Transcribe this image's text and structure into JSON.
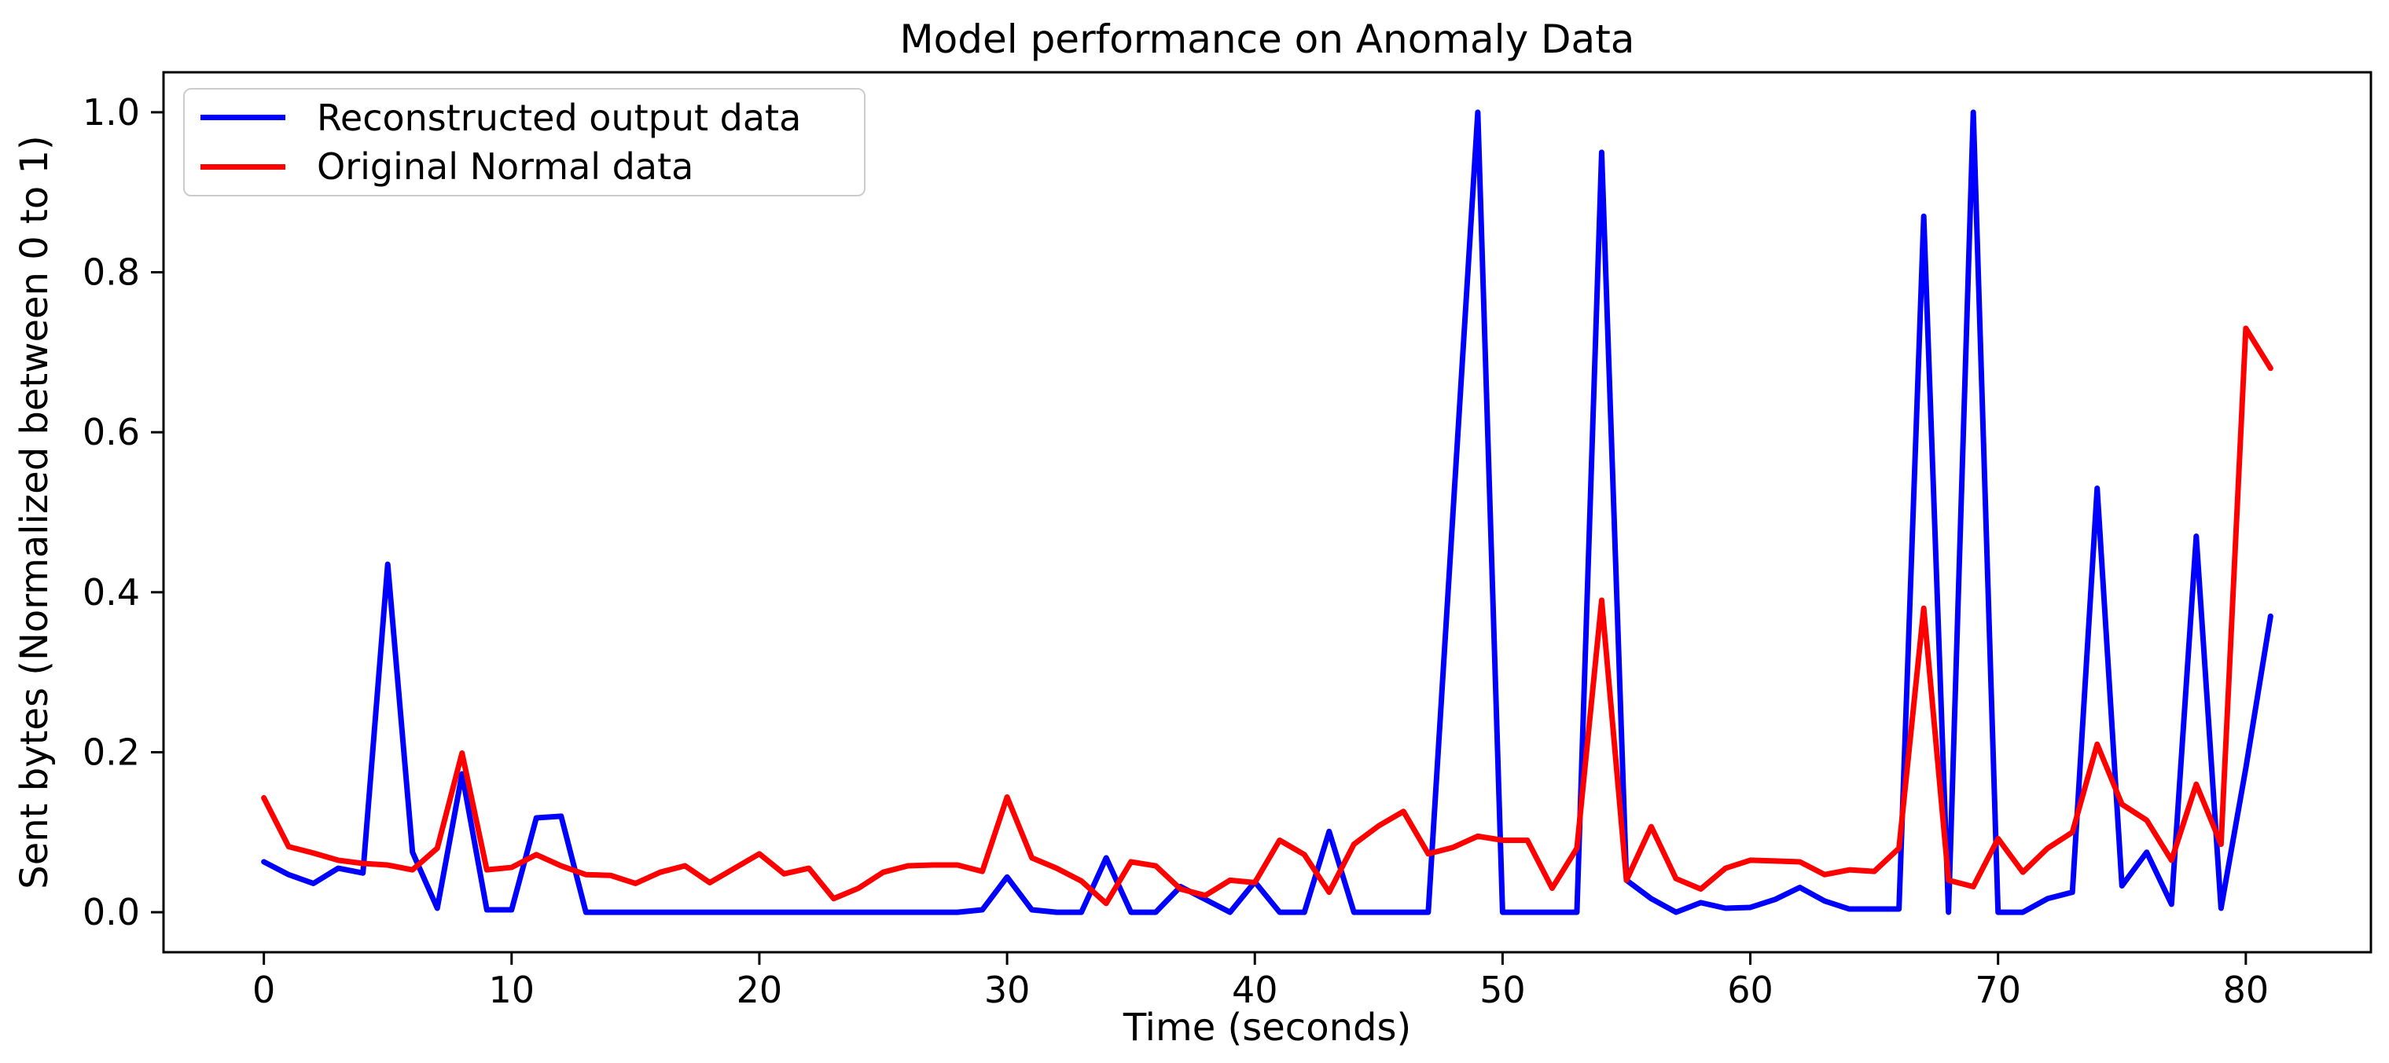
{
  "chart_data": {
    "type": "line",
    "title": "Model performance on Anomaly Data",
    "xlabel": "Time (seconds)",
    "ylabel": "Sent bytes (Normalized between 0 to 1)",
    "grid": false,
    "legend_position": "upper left",
    "background_color": "#ffffff",
    "spine_color": "#000000",
    "xlim": [
      -4.05,
      85.05
    ],
    "ylim": [
      -0.05,
      1.05
    ],
    "xticks": [
      0,
      10,
      20,
      30,
      40,
      50,
      60,
      70,
      80
    ],
    "ytick_labels": [
      "0.0",
      "0.2",
      "0.4",
      "0.6",
      "0.8",
      "1.0"
    ],
    "x": [
      0,
      1,
      2,
      3,
      4,
      5,
      6,
      7,
      8,
      9,
      10,
      11,
      12,
      13,
      14,
      15,
      16,
      17,
      18,
      19,
      20,
      21,
      22,
      23,
      24,
      25,
      26,
      27,
      28,
      29,
      30,
      31,
      32,
      33,
      34,
      35,
      36,
      37,
      38,
      39,
      40,
      41,
      42,
      43,
      44,
      45,
      46,
      47,
      48,
      49,
      50,
      51,
      52,
      53,
      54,
      55,
      56,
      57,
      58,
      59,
      60,
      61,
      62,
      63,
      64,
      65,
      66,
      67,
      68,
      69,
      70,
      71,
      72,
      73,
      74,
      75,
      76,
      77,
      78,
      79,
      80,
      81
    ],
    "series": [
      {
        "name": "Reconstructed output data",
        "color": "#0000ff",
        "values": [
          0.063,
          0.047,
          0.036,
          0.055,
          0.049,
          0.435,
          0.075,
          0.005,
          0.173,
          0.003,
          0.003,
          0.118,
          0.12,
          0,
          0,
          0,
          0,
          0,
          0,
          0,
          0,
          0,
          0,
          0,
          0,
          0,
          0,
          0,
          0,
          0.003,
          0.044,
          0.003,
          0,
          0,
          0.068,
          0,
          0,
          0.032,
          0.016,
          0,
          0.038,
          0,
          0,
          0.101,
          0,
          0,
          0,
          0,
          0.5,
          1.0,
          0,
          0,
          0,
          0,
          0.95,
          0.04,
          0.017,
          0,
          0.012,
          0.005,
          0.006,
          0.016,
          0.031,
          0.014,
          0.004,
          0.004,
          0.004,
          0.87,
          0,
          1.0,
          0,
          0,
          0.017,
          0.025,
          0.53,
          0.033,
          0.075,
          0.01,
          0.47,
          0.005,
          0.18,
          0.37
        ]
      },
      {
        "name": "Original Normal data",
        "color": "#ff0000",
        "values": [
          0.143,
          0.082,
          0.074,
          0.065,
          0.061,
          0.059,
          0.053,
          0.08,
          0.199,
          0.053,
          0.056,
          0.072,
          0.058,
          0.047,
          0.046,
          0.036,
          0.05,
          0.058,
          0.037,
          0.055,
          0.073,
          0.048,
          0.055,
          0.017,
          0.03,
          0.05,
          0.058,
          0.059,
          0.059,
          0.051,
          0.144,
          0.068,
          0.055,
          0.039,
          0.011,
          0.063,
          0.058,
          0.029,
          0.021,
          0.04,
          0.037,
          0.09,
          0.072,
          0.025,
          0.085,
          0.108,
          0.126,
          0.073,
          0.081,
          0.095,
          0.09,
          0.09,
          0.03,
          0.08,
          0.39,
          0.04,
          0.107,
          0.042,
          0.029,
          0.055,
          0.065,
          0.064,
          0.063,
          0.047,
          0.053,
          0.051,
          0.08,
          0.38,
          0.04,
          0.032,
          0.092,
          0.05,
          0.08,
          0.1,
          0.21,
          0.135,
          0.115,
          0.065,
          0.16,
          0.085,
          0.73,
          0.68
        ]
      }
    ]
  }
}
